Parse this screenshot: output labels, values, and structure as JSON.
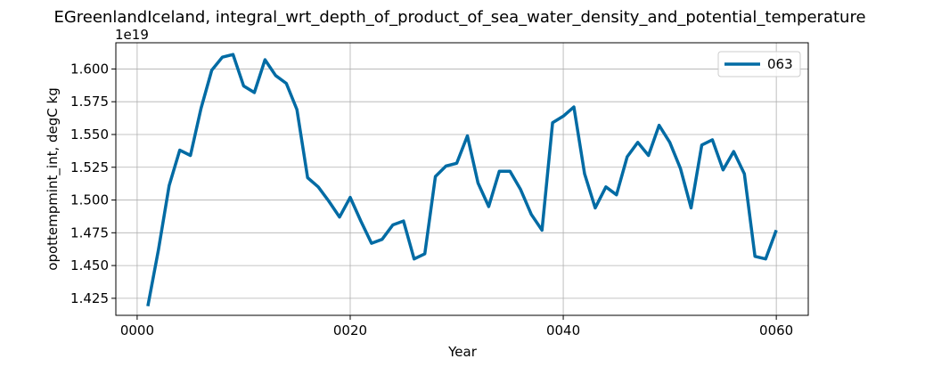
{
  "chart_data": {
    "type": "line",
    "title": "EGreenlandIceland, integral_wrt_depth_of_product_of_sea_water_density_and_potential_temperature",
    "xlabel": "Year",
    "ylabel": "opottempmint_int, degC kg",
    "y_offset_label": "1e19",
    "xlim": [
      -2,
      63
    ],
    "ylim": [
      1.412,
      1.62
    ],
    "x_ticks": [
      0,
      20,
      40,
      60
    ],
    "x_tick_labels": [
      "0000",
      "0020",
      "0040",
      "0060"
    ],
    "y_ticks": [
      1.425,
      1.45,
      1.475,
      1.5,
      1.525,
      1.55,
      1.575,
      1.6
    ],
    "y_tick_labels": [
      "1.425",
      "1.450",
      "1.475",
      "1.500",
      "1.525",
      "1.550",
      "1.575",
      "1.600"
    ],
    "grid": true,
    "legend_position": "top-right",
    "series": [
      {
        "name": "063",
        "color": "#006ba4",
        "x": [
          1,
          2,
          3,
          4,
          5,
          6,
          7,
          8,
          9,
          10,
          11,
          12,
          13,
          14,
          15,
          16,
          17,
          18,
          19,
          20,
          21,
          22,
          23,
          24,
          25,
          26,
          27,
          28,
          29,
          30,
          31,
          32,
          33,
          34,
          35,
          36,
          37,
          38,
          39,
          40,
          41,
          42,
          43,
          44,
          45,
          46,
          47,
          48,
          49,
          50,
          51,
          52,
          53,
          54,
          55,
          56,
          57,
          58,
          59,
          60
        ],
        "values": [
          1.419,
          1.462,
          1.511,
          1.538,
          1.534,
          1.57,
          1.599,
          1.609,
          1.611,
          1.587,
          1.582,
          1.607,
          1.595,
          1.589,
          1.569,
          1.517,
          1.51,
          1.499,
          1.487,
          1.502,
          1.484,
          1.467,
          1.47,
          1.481,
          1.484,
          1.455,
          1.459,
          1.518,
          1.526,
          1.528,
          1.549,
          1.513,
          1.495,
          1.522,
          1.522,
          1.508,
          1.489,
          1.477,
          1.559,
          1.564,
          1.571,
          1.52,
          1.494,
          1.51,
          1.504,
          1.533,
          1.544,
          1.534,
          1.557,
          1.544,
          1.524,
          1.494,
          1.542,
          1.546,
          1.523,
          1.537,
          1.52,
          1.457,
          1.455,
          1.477
        ]
      }
    ]
  }
}
